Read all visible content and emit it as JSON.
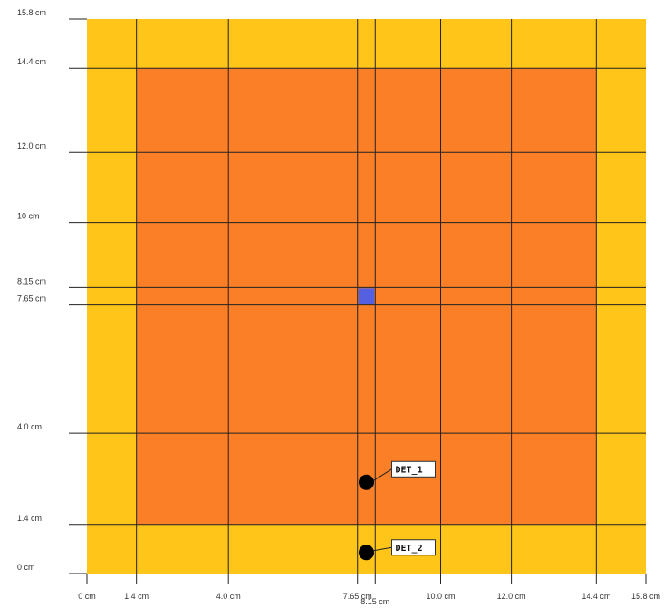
{
  "colors": {
    "outer_region": "#FFC519",
    "inner_region": "#FA7F27",
    "grid_line": "#222222",
    "source_marker": "#5560E0",
    "detector_marker": "#000000",
    "label_box": "#FFFFFF"
  },
  "geometry": {
    "extent_cm": [
      0,
      15.8
    ],
    "inner_region_cm": {
      "x": [
        1.4,
        14.4
      ],
      "y": [
        1.4,
        14.4
      ]
    },
    "x_lines_cm": [
      1.4,
      4.0,
      7.65,
      8.15,
      10.0,
      12.0,
      14.4
    ],
    "y_lines_cm": [
      1.4,
      4.0,
      7.65,
      8.15,
      10.0,
      12.0,
      14.4
    ]
  },
  "x_ticks": [
    {
      "value": 0,
      "label": "0 cm"
    },
    {
      "value": 1.4,
      "label": "1.4 cm"
    },
    {
      "value": 4.0,
      "label": "4.0 cm"
    },
    {
      "value": 7.65,
      "label": "7.65 cm"
    },
    {
      "value": 8.15,
      "label": "8.15 cm"
    },
    {
      "value": 10.0,
      "label": "10.0 cm"
    },
    {
      "value": 12.0,
      "label": "12.0 cm"
    },
    {
      "value": 14.4,
      "label": "14.4 cm"
    },
    {
      "value": 15.8,
      "label": "15.8 cm"
    }
  ],
  "y_ticks": [
    {
      "value": 0,
      "label": "0 cm"
    },
    {
      "value": 1.4,
      "label": "1.4 cm"
    },
    {
      "value": 4.0,
      "label": "4.0 cm"
    },
    {
      "value": 7.65,
      "label": "7.65 cm"
    },
    {
      "value": 8.15,
      "label": "8.15 cm"
    },
    {
      "value": 10.0,
      "label": "10 cm"
    },
    {
      "value": 12.0,
      "label": "12.0 cm"
    },
    {
      "value": 14.4,
      "label": "14.4 cm"
    },
    {
      "value": 15.8,
      "label": "15.8 cm"
    }
  ],
  "source": {
    "x_cm": [
      7.65,
      8.15
    ],
    "y_cm": [
      7.65,
      8.15
    ]
  },
  "detectors": [
    {
      "label": "DET_1",
      "x_cm": 7.9,
      "y_cm": 2.6
    },
    {
      "label": "DET_2",
      "x_cm": 7.9,
      "y_cm": 0.6
    }
  ]
}
